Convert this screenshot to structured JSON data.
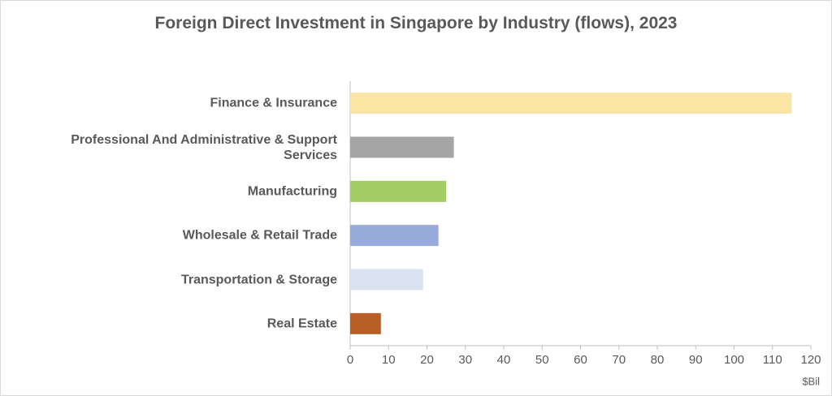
{
  "chart_data": {
    "type": "bar",
    "orientation": "horizontal",
    "title": "Foreign Direct Investment in Singapore by Industry (flows), 2023",
    "categories": [
      "Finance & Insurance",
      "Professional And Administrative & Support Services",
      "Manufacturing",
      "Wholesale & Retail Trade",
      "Transportation & Storage",
      "Real Estate"
    ],
    "values": [
      115,
      27,
      25,
      23,
      19,
      8
    ],
    "colors": [
      "#fbe5a5",
      "#a5a5a5",
      "#a2cd64",
      "#98acdc",
      "#dae2ef",
      "#b85f27"
    ],
    "xlabel": "$Bil",
    "xlim": [
      0,
      120
    ],
    "xticks": [
      0,
      10,
      20,
      30,
      40,
      50,
      60,
      70,
      80,
      90,
      100,
      110,
      120
    ],
    "grid": false
  }
}
